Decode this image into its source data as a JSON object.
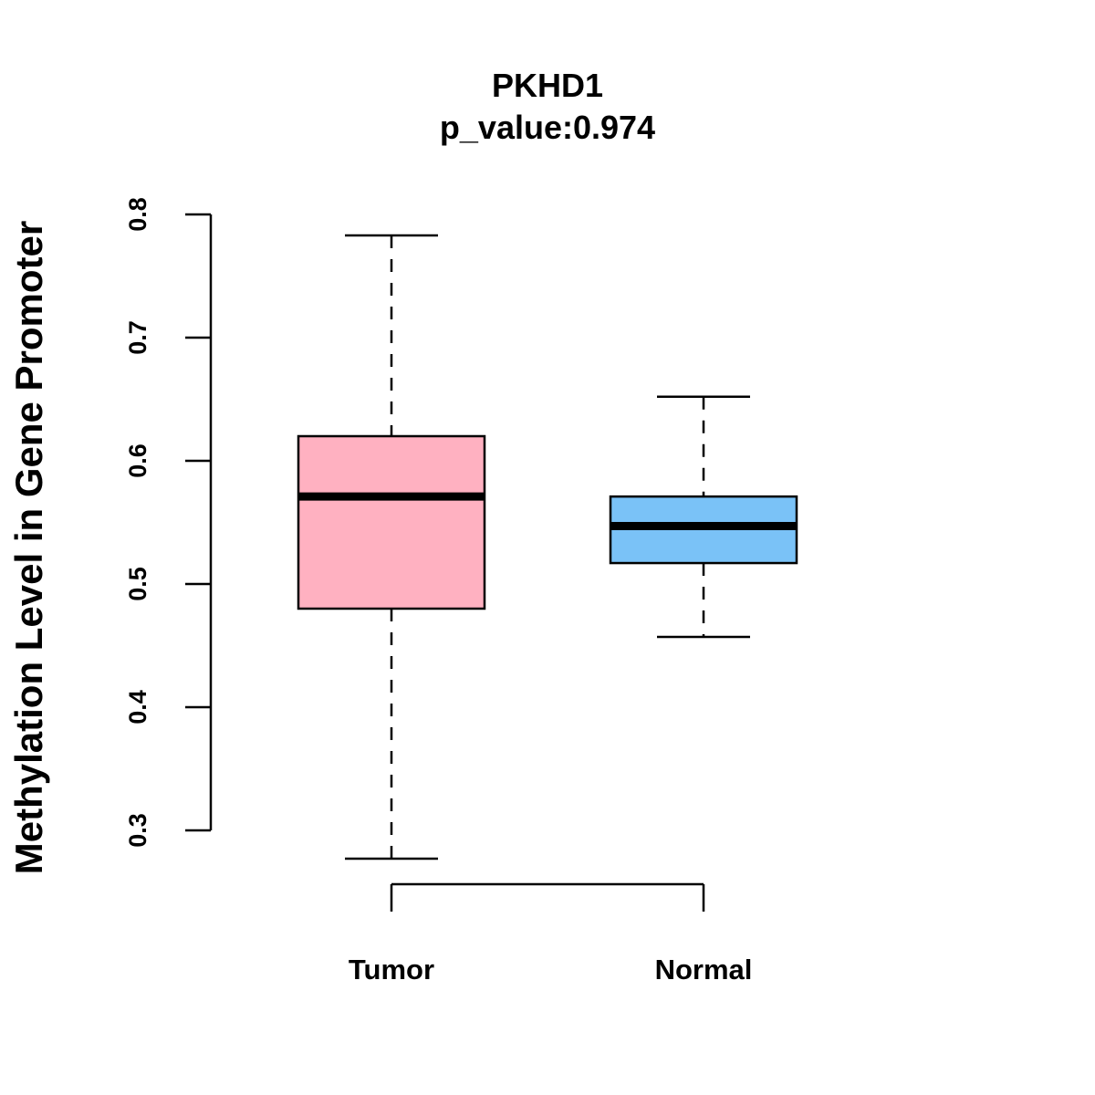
{
  "chart_data": {
    "type": "box",
    "title": "PKHD1",
    "subtitle": "p_value:0.974",
    "xlabel": "",
    "ylabel": "Methylation Level in Gene Promoter",
    "ylim": [
      0.3,
      0.8
    ],
    "y_ticks": [
      "0.3",
      "0.4",
      "0.5",
      "0.6",
      "0.7",
      "0.8"
    ],
    "categories": [
      "Tumor",
      "Normal"
    ],
    "series": [
      {
        "category": "Tumor",
        "whisker_low": 0.277,
        "q1": 0.48,
        "median": 0.571,
        "q3": 0.62,
        "whisker_high": 0.783,
        "color": "#FFB1C1"
      },
      {
        "category": "Normal",
        "whisker_low": 0.457,
        "q1": 0.517,
        "median": 0.547,
        "q3": 0.571,
        "whisker_high": 0.652,
        "color": "#7AC2F7"
      }
    ],
    "grid": false,
    "legend": "none"
  }
}
